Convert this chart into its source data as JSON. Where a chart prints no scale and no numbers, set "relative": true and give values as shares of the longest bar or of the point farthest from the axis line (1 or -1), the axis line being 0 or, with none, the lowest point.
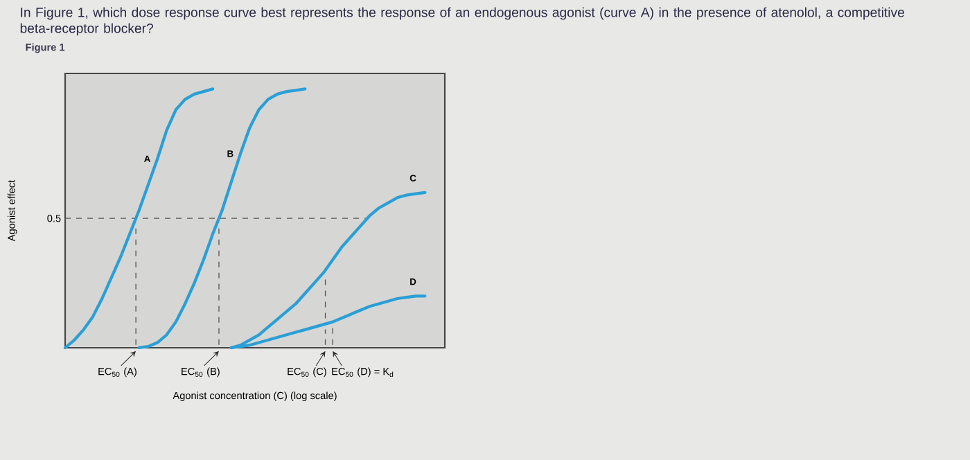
{
  "chart_data": {
    "type": "line",
    "title": "In Figure 1, which dose response curve best represents the response of an endogenous agonist (curve A) in the presence of atenolol, a competitive beta-receptor blocker?",
    "subtitle": "Figure 1",
    "xlabel": "Agonist concentration (C) (log scale)",
    "ylabel": "Agonist effect",
    "relative": true,
    "marker": "none",
    "line_style": "solid",
    "categories": [
      null,
      null,
      null,
      null,
      null,
      null,
      null,
      null,
      null,
      null,
      null,
      null,
      null,
      null,
      null,
      null,
      null,
      null,
      null,
      null,
      null,
      null,
      null,
      null,
      null,
      null,
      null,
      null,
      null,
      null,
      null,
      null,
      null,
      null,
      null,
      null,
      null,
      null,
      null,
      null,
      null,
      null
    ],
    "series": [
      {
        "name": "A",
        "color": "#2a9fd6",
        "values": [
          0.0,
          0.03,
          0.07,
          0.12,
          0.19,
          0.27,
          0.35,
          0.44,
          0.53,
          0.63,
          0.73,
          0.84,
          0.92,
          0.96,
          0.98,
          0.99,
          1.0,
          null,
          null,
          null,
          null,
          null,
          null,
          null,
          null,
          null,
          null,
          null,
          null,
          null,
          null,
          null,
          null,
          null,
          null,
          null,
          null,
          null,
          null,
          null,
          null,
          null
        ]
      },
      {
        "name": "B",
        "color": "#2a9fd6",
        "values": [
          null,
          null,
          null,
          null,
          null,
          null,
          null,
          null,
          0.0,
          0.005,
          0.02,
          0.05,
          0.1,
          0.17,
          0.25,
          0.34,
          0.44,
          0.53,
          0.64,
          0.75,
          0.85,
          0.92,
          0.96,
          0.98,
          0.99,
          0.995,
          1.0,
          null,
          null,
          null,
          null,
          null,
          null,
          null,
          null,
          null,
          null,
          null,
          null,
          null,
          null,
          null
        ]
      },
      {
        "name": "C",
        "color": "#2a9fd6",
        "values": [
          null,
          null,
          null,
          null,
          null,
          null,
          null,
          null,
          null,
          null,
          null,
          null,
          null,
          null,
          null,
          null,
          null,
          null,
          0.0,
          0.01,
          0.03,
          0.05,
          0.08,
          0.11,
          0.14,
          0.17,
          0.21,
          0.25,
          0.29,
          0.34,
          0.39,
          0.43,
          0.47,
          0.51,
          0.54,
          0.56,
          0.58,
          0.59,
          0.595,
          0.6,
          null,
          null
        ]
      },
      {
        "name": "D",
        "color": "#2a9fd6",
        "values": [
          null,
          null,
          null,
          null,
          null,
          null,
          null,
          null,
          null,
          null,
          null,
          null,
          null,
          null,
          null,
          null,
          null,
          null,
          0.0,
          0.005,
          0.01,
          0.02,
          0.03,
          0.04,
          0.05,
          0.06,
          0.07,
          0.08,
          0.09,
          0.1,
          0.115,
          0.13,
          0.145,
          0.16,
          0.17,
          0.18,
          0.19,
          0.195,
          0.2,
          0.2,
          null,
          null
        ]
      }
    ],
    "ref_lines": [
      {
        "axis": "y",
        "value": 0.5,
        "label": "0.5",
        "line_style": "dashed",
        "color": "#555555"
      }
    ],
    "annotations": [
      "EC$_{50}$ (A)",
      "EC$_{50}$ (B)",
      "EC$_{50}$ (C)",
      "EC$_{50}$ (D) = K$_{d}$"
    ]
  }
}
